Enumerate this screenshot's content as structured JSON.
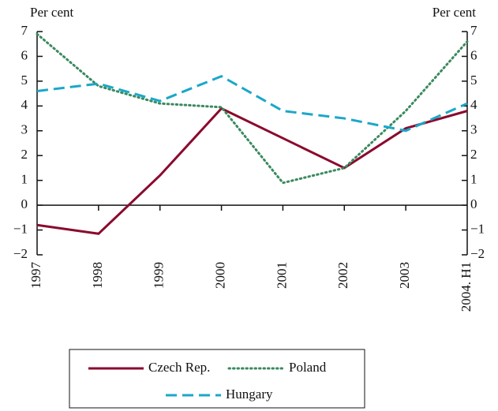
{
  "chart_data": {
    "type": "line",
    "ylabel": "Per cent",
    "y2label": "Per cent",
    "categories": [
      "1997",
      "1998",
      "1999",
      "2000",
      "2001",
      "2002",
      "2003",
      "2004. H1"
    ],
    "series": [
      {
        "name": "Czech Rep.",
        "color": "#8b0a2e",
        "style": "solid",
        "values": [
          -0.8,
          -1.15,
          1.2,
          3.9,
          2.7,
          1.5,
          3.1,
          3.8
        ]
      },
      {
        "name": "Poland",
        "color": "#3a8a5e",
        "style": "dotted",
        "values": [
          6.9,
          4.8,
          4.1,
          3.95,
          0.9,
          1.5,
          3.8,
          6.6
        ]
      },
      {
        "name": "Hungary",
        "color": "#1aa7c9",
        "style": "dashed",
        "values": [
          4.6,
          4.9,
          4.2,
          5.2,
          3.8,
          3.5,
          3.0,
          4.1
        ]
      }
    ],
    "ylim": [
      -2,
      7
    ],
    "yticks": [
      {
        "value": -2,
        "label": "−2"
      },
      {
        "value": -1,
        "label": "−1"
      },
      0,
      1,
      2,
      3,
      4,
      5,
      6,
      7
    ],
    "y2lim": [
      -2,
      7
    ],
    "y2ticks": [
      {
        "value": -2,
        "label": "−2"
      },
      {
        "value": -1,
        "label": "−1"
      },
      0,
      1,
      2,
      3,
      4,
      5,
      6,
      7
    ]
  }
}
